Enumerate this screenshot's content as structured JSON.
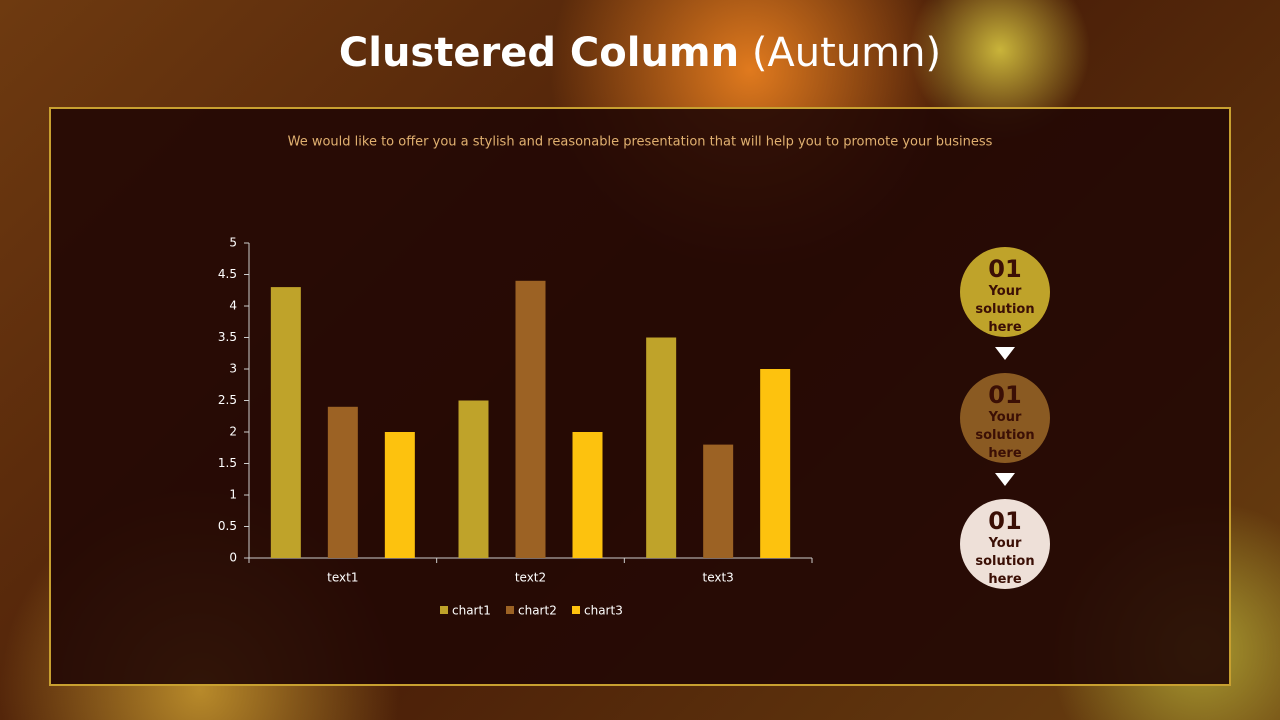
{
  "chart_data": {
    "type": "bar",
    "title": "Clustered Column",
    "title_suffix": "(Autumn)",
    "subtitle": "We would like to offer you a stylish and reasonable presentation that will help you to promote your business",
    "categories": [
      "text1",
      "text2",
      "text3"
    ],
    "series": [
      {
        "name": "chart1",
        "color": "#bfa32a",
        "values": [
          4.3,
          2.5,
          3.5
        ]
      },
      {
        "name": "chart2",
        "color": "#9c6224",
        "values": [
          2.4,
          4.4,
          1.8
        ]
      },
      {
        "name": "chart3",
        "color": "#fdc20e",
        "values": [
          2,
          2,
          3
        ]
      }
    ],
    "ylim": [
      0,
      5
    ],
    "yticks": [
      0,
      0.5,
      1,
      1.5,
      2,
      2.5,
      3,
      3.5,
      4,
      4.5,
      5
    ],
    "legend": "bottom"
  },
  "steps": [
    {
      "number": "01",
      "label": "Your solution here",
      "color": "#bfa32a"
    },
    {
      "number": "01",
      "label": "Your solution here",
      "color": "#8a5a22"
    },
    {
      "number": "01",
      "label": "Your solution here",
      "color": "#eee0d8"
    }
  ]
}
